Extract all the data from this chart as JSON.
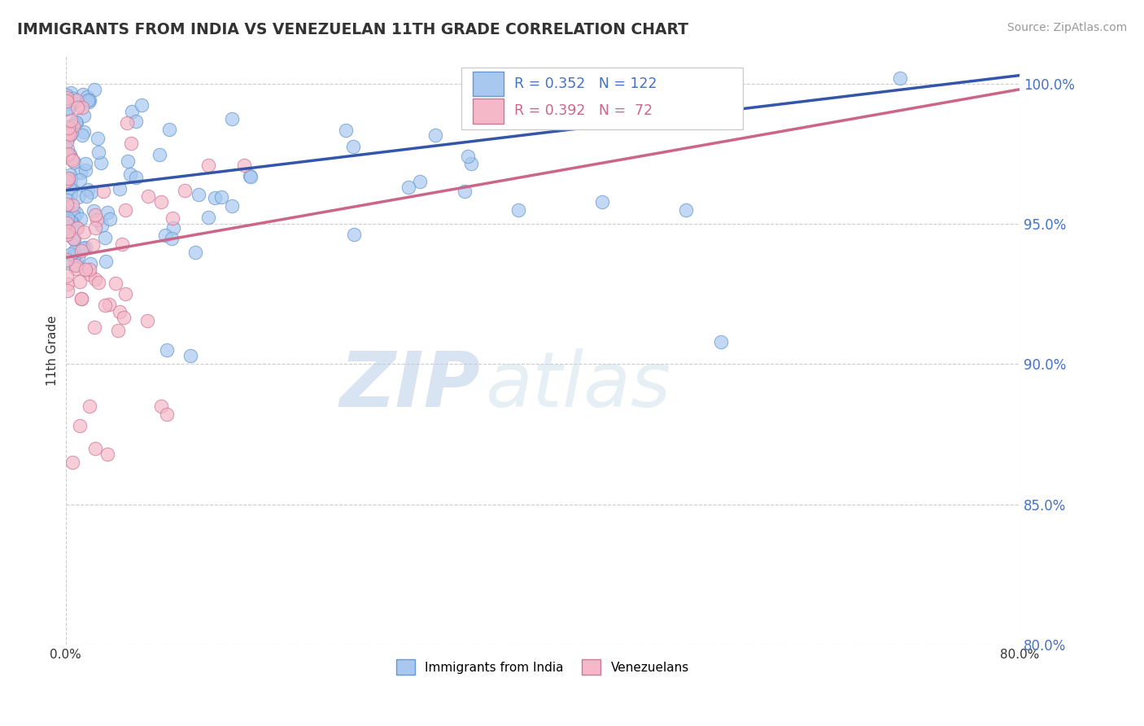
{
  "title": "IMMIGRANTS FROM INDIA VS VENEZUELAN 11TH GRADE CORRELATION CHART",
  "source": "Source: ZipAtlas.com",
  "ylabel": "11th Grade",
  "x_min": 0.0,
  "x_max": 0.8,
  "y_min": 80.0,
  "y_max": 101.0,
  "y_ticks": [
    80.0,
    85.0,
    90.0,
    95.0,
    100.0
  ],
  "x_ticks": [
    0.0,
    0.8
  ],
  "x_tick_labels": [
    "0.0%",
    "80.0%"
  ],
  "y_tick_labels": [
    "80.0%",
    "85.0%",
    "90.0%",
    "95.0%",
    "100.0%"
  ],
  "india_color": "#a8c8f0",
  "india_color_edge": "#6699cc",
  "venezuela_color": "#f5b8c8",
  "venezuela_color_edge": "#cc7799",
  "india_R": 0.352,
  "india_N": 122,
  "venezuela_R": 0.392,
  "venezuela_N": 72,
  "legend_india_label": "Immigrants from India",
  "legend_venezuela_label": "Venezuelans",
  "watermark_zip": "ZIP",
  "watermark_atlas": "atlas",
  "india_line_color": "#3355aa",
  "venezuela_line_color": "#cc6688",
  "india_line_x0": 0.0,
  "india_line_y0": 96.2,
  "india_line_x1": 0.8,
  "india_line_y1": 100.3,
  "venezuela_line_x0": 0.0,
  "venezuela_line_y0": 93.8,
  "venezuela_line_x1": 0.8,
  "venezuela_line_y1": 99.8
}
